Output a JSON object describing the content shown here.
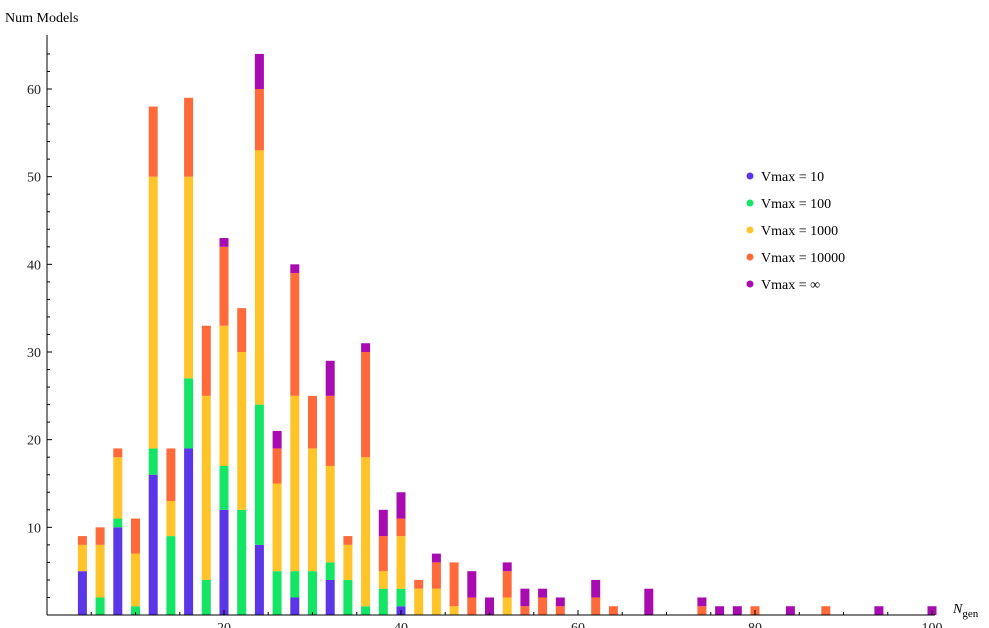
{
  "chart_data": {
    "type": "bar",
    "stacked": true,
    "title": "",
    "ylabel": "Num Models",
    "xlabel_main": "N",
    "xlabel_sub": "gen",
    "xlim": [
      0,
      102
    ],
    "ylim": [
      0,
      66
    ],
    "xticks_major": [
      20,
      40,
      60,
      80,
      100
    ],
    "yticks_major": [
      10,
      20,
      30,
      40,
      50,
      60
    ],
    "grid": false,
    "legend_position": "right",
    "x": [
      4,
      6,
      8,
      10,
      12,
      14,
      16,
      18,
      20,
      22,
      24,
      26,
      28,
      30,
      32,
      34,
      36,
      38,
      40,
      42,
      44,
      46,
      48,
      50,
      52,
      54,
      56,
      58,
      62,
      64,
      68,
      74,
      76,
      78,
      80,
      84,
      88,
      94,
      100
    ],
    "series": [
      {
        "name": "Vmax = 10",
        "color": "#5a36e8",
        "values": [
          5,
          0,
          10,
          0,
          16,
          0,
          19,
          0,
          12,
          0,
          8,
          0,
          2,
          0,
          4,
          0,
          0,
          0,
          1,
          0,
          0,
          0,
          0,
          0,
          0,
          0,
          0,
          0,
          0,
          0,
          0,
          0,
          0,
          0,
          0,
          0,
          0,
          0,
          0
        ]
      },
      {
        "name": "Vmax = 100",
        "color": "#15e565",
        "values": [
          0,
          2,
          1,
          1,
          3,
          9,
          8,
          4,
          5,
          12,
          16,
          5,
          3,
          5,
          2,
          4,
          1,
          3,
          2,
          0,
          0,
          0,
          0,
          0,
          0,
          0,
          0,
          0,
          0,
          0,
          0,
          0,
          0,
          0,
          0,
          0,
          0,
          0,
          0
        ]
      },
      {
        "name": "Vmax = 1000",
        "color": "#ffc42a",
        "values": [
          3,
          6,
          7,
          6,
          31,
          4,
          23,
          21,
          16,
          18,
          29,
          10,
          20,
          14,
          11,
          4,
          17,
          2,
          6,
          3,
          3,
          1,
          0,
          0,
          2,
          0,
          0,
          0,
          0,
          0,
          0,
          0,
          0,
          0,
          0,
          0,
          0,
          0,
          0
        ]
      },
      {
        "name": "Vmax = 10000",
        "color": "#ff6a3a",
        "values": [
          1,
          2,
          1,
          4,
          8,
          6,
          9,
          8,
          9,
          5,
          7,
          4,
          14,
          6,
          8,
          1,
          12,
          4,
          2,
          1,
          3,
          5,
          2,
          0,
          3,
          1,
          2,
          1,
          2,
          1,
          0,
          1,
          0,
          0,
          1,
          0,
          1,
          0,
          0
        ]
      },
      {
        "name": "Vmax = ∞",
        "color": "#a80cb0",
        "values": [
          0,
          0,
          0,
          0,
          0,
          0,
          0,
          0,
          1,
          0,
          4,
          2,
          1,
          0,
          4,
          0,
          1,
          3,
          3,
          0,
          1,
          0,
          3,
          2,
          1,
          2,
          1,
          1,
          2,
          0,
          3,
          1,
          1,
          1,
          0,
          1,
          0,
          1,
          1
        ]
      }
    ]
  }
}
